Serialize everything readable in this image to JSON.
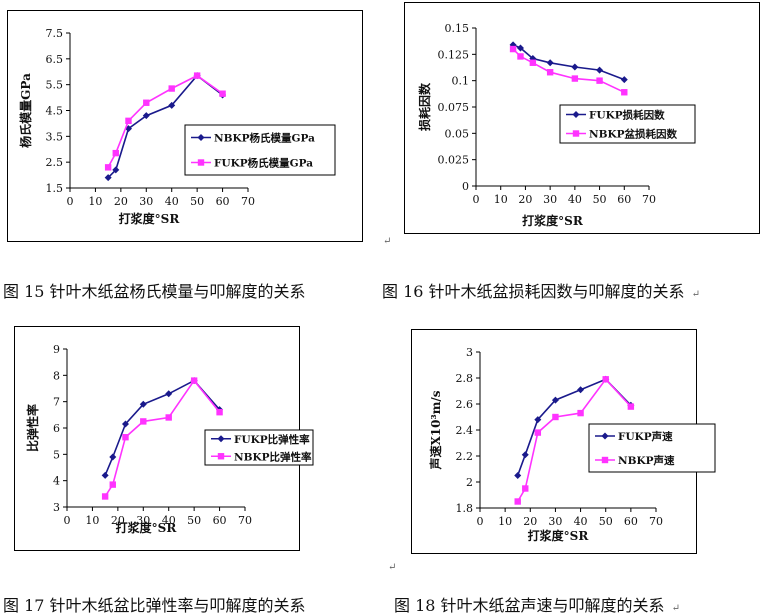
{
  "charts": [
    {
      "id": "fig15",
      "type": "line",
      "xlabel": "打浆度°SR",
      "ylabel": "杨氏模量GPa",
      "xlim": [
        0,
        70
      ],
      "xticks": [
        0,
        10,
        20,
        30,
        40,
        50,
        60,
        70
      ],
      "ylim": [
        1.5,
        7.5
      ],
      "yticks": [
        "1.5",
        "2.5",
        "3.5",
        "4.5",
        "5.5",
        "6.5",
        "7.5"
      ],
      "series": [
        {
          "name": "NBKP杨氏模量GPa",
          "marker": "diamond",
          "color": "#1a1a8c",
          "x": [
            15,
            18,
            23,
            30,
            40,
            50,
            60
          ],
          "y": [
            1.9,
            2.2,
            3.8,
            4.3,
            4.7,
            5.85,
            5.1
          ]
        },
        {
          "name": "FUKP杨氏模量GPa",
          "marker": "square",
          "color": "#ff33ff",
          "x": [
            15,
            18,
            23,
            30,
            40,
            50,
            60
          ],
          "y": [
            2.3,
            2.85,
            4.1,
            4.8,
            5.35,
            5.85,
            5.15
          ]
        }
      ]
    },
    {
      "id": "fig16",
      "type": "line",
      "xlabel": "打浆度°SR",
      "ylabel": "损耗因数",
      "xlim": [
        0,
        70
      ],
      "xticks": [
        0,
        10,
        20,
        30,
        40,
        50,
        60,
        70
      ],
      "ylim": [
        0,
        0.15
      ],
      "yticks": [
        "0",
        "0.025",
        "0.05",
        "0.075",
        "0.1",
        "0.125",
        "0.15"
      ],
      "series": [
        {
          "name": "FUKP损耗因数",
          "marker": "diamond",
          "color": "#1a1a8c",
          "x": [
            15,
            18,
            23,
            30,
            40,
            50,
            60
          ],
          "y": [
            0.134,
            0.131,
            0.121,
            0.117,
            0.113,
            0.11,
            0.101
          ]
        },
        {
          "name": "NBKP盆损耗因数",
          "marker": "square",
          "color": "#ff33ff",
          "x": [
            15,
            18,
            23,
            30,
            40,
            50,
            60
          ],
          "y": [
            0.13,
            0.123,
            0.117,
            0.108,
            0.102,
            0.1,
            0.089
          ]
        }
      ]
    },
    {
      "id": "fig17",
      "type": "line",
      "xlabel": "打浆度°SR",
      "ylabel": "比弹性率",
      "xlim": [
        0,
        70
      ],
      "xticks": [
        0,
        10,
        20,
        30,
        40,
        50,
        60,
        70
      ],
      "ylim": [
        3,
        9
      ],
      "yticks": [
        "3",
        "4",
        "5",
        "6",
        "7",
        "8",
        "9"
      ],
      "series": [
        {
          "name": "FUKP比弹性率",
          "marker": "diamond",
          "color": "#1a1a8c",
          "x": [
            15,
            18,
            23,
            30,
            40,
            50,
            60
          ],
          "y": [
            4.2,
            4.9,
            6.15,
            6.9,
            7.3,
            7.8,
            6.7
          ]
        },
        {
          "name": "NBKP比弹性率",
          "marker": "square",
          "color": "#ff33ff",
          "x": [
            15,
            18,
            23,
            30,
            40,
            50,
            60
          ],
          "y": [
            3.4,
            3.85,
            5.65,
            6.25,
            6.4,
            7.8,
            6.6
          ]
        }
      ]
    },
    {
      "id": "fig18",
      "type": "line",
      "xlabel": "打浆度°SR",
      "ylabel": "声速X10³m/s",
      "xlim": [
        0,
        70
      ],
      "xticks": [
        0,
        10,
        20,
        30,
        40,
        50,
        60,
        70
      ],
      "ylim": [
        1.8,
        3
      ],
      "yticks": [
        "1.8",
        "2",
        "2.2",
        "2.4",
        "2.6",
        "2.8",
        "3"
      ],
      "series": [
        {
          "name": "FUKP声速",
          "marker": "diamond",
          "color": "#1a1a8c",
          "x": [
            15,
            18,
            23,
            30,
            40,
            50,
            60
          ],
          "y": [
            2.05,
            2.21,
            2.48,
            2.63,
            2.71,
            2.79,
            2.59
          ]
        },
        {
          "name": "NBKP声速",
          "marker": "square",
          "color": "#ff33ff",
          "x": [
            15,
            18,
            23,
            30,
            40,
            50,
            60
          ],
          "y": [
            1.85,
            1.95,
            2.38,
            2.5,
            2.53,
            2.79,
            2.58
          ]
        }
      ]
    }
  ],
  "captions": {
    "fig15": "图 15 针叶木纸盆杨氏模量与叩解度的关系",
    "fig16": "图 16 针叶木纸盆损耗因数与叩解度的关系",
    "fig17": "图 17 针叶木纸盆比弹性率与叩解度的关系",
    "fig18": "图 18 针叶木纸盆声速与叩解度的关系"
  },
  "return_mark": "↵"
}
